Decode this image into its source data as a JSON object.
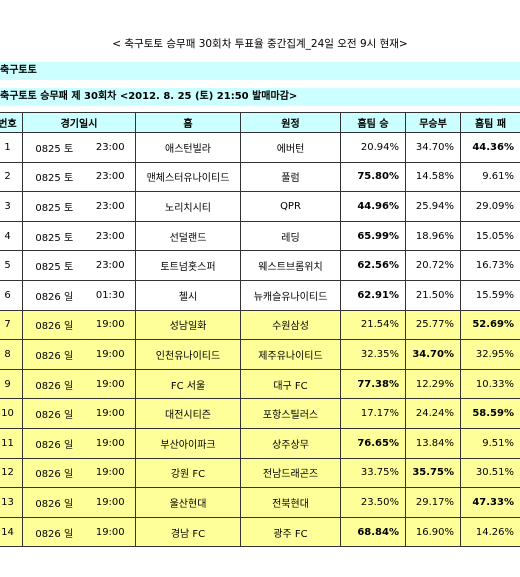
{
  "header": {
    "title": "< 축구토토 승무패 30회차 투표율 중간집계_24일 오전 9시 현재>"
  },
  "section": "축구토토",
  "subtitle": "축구토토 승무패 제 30회차 <2012. 8. 25 (토) 21:50 발매마감>",
  "table": {
    "columns": [
      "번호",
      "경기일시",
      "홈",
      "원정",
      "홈팀 승",
      "무승부",
      "홈팀 패"
    ],
    "rows": [
      [
        "1",
        "0825 토",
        "23:00",
        "애스턴빌라",
        "에버턴",
        "20.94%",
        "34.70%",
        "44.36%"
      ],
      [
        "2",
        "0825 토",
        "23:00",
        "맨체스터유나이티드",
        "풀럼",
        "75.80%",
        "14.58%",
        "9.61%"
      ],
      [
        "3",
        "0825 토",
        "23:00",
        "노리치시티",
        "QPR",
        "44.96%",
        "25.94%",
        "29.09%"
      ],
      [
        "4",
        "0825 토",
        "23:00",
        "선덜랜드",
        "레딩",
        "65.99%",
        "18.96%",
        "15.05%"
      ],
      [
        "5",
        "0825 토",
        "23:00",
        "토트넘홋스퍼",
        "웨스트브롬위치",
        "62.56%",
        "20.72%",
        "16.73%"
      ],
      [
        "6",
        "0826 일",
        "01:30",
        "첼시",
        "뉴캐슬유나이티드",
        "62.91%",
        "21.50%",
        "15.59%"
      ],
      [
        "7",
        "0826 일",
        "19:00",
        "성남일화",
        "수원삼성",
        "21.54%",
        "25.77%",
        "52.69%"
      ],
      [
        "8",
        "0826 일",
        "19:00",
        "인천유나이티드",
        "제주유나이티드",
        "32.35%",
        "34.70%",
        "32.95%"
      ],
      [
        "9",
        "0826 일",
        "19:00",
        "FC 서울",
        "대구 FC",
        "77.38%",
        "12.29%",
        "10.33%"
      ],
      [
        "10",
        "0826 일",
        "19:00",
        "대전시티즌",
        "포항스틸러스",
        "17.17%",
        "24.24%",
        "58.59%"
      ],
      [
        "11",
        "0826 일",
        "19:00",
        "부산아이파크",
        "상주상무",
        "76.65%",
        "13.84%",
        "9.51%"
      ],
      [
        "12",
        "0826 일",
        "19:00",
        "강원 FC",
        "전남드래곤즈",
        "33.75%",
        "35.75%",
        "30.51%"
      ],
      [
        "13",
        "0826 일",
        "19:00",
        "울산현대",
        "전북현대",
        "23.50%",
        "29.17%",
        "47.33%"
      ],
      [
        "14",
        "0826 일",
        "19:00",
        "경남 FC",
        "광주 FC",
        "68.84%",
        "16.90%",
        "14.26%"
      ]
    ]
  }
}
